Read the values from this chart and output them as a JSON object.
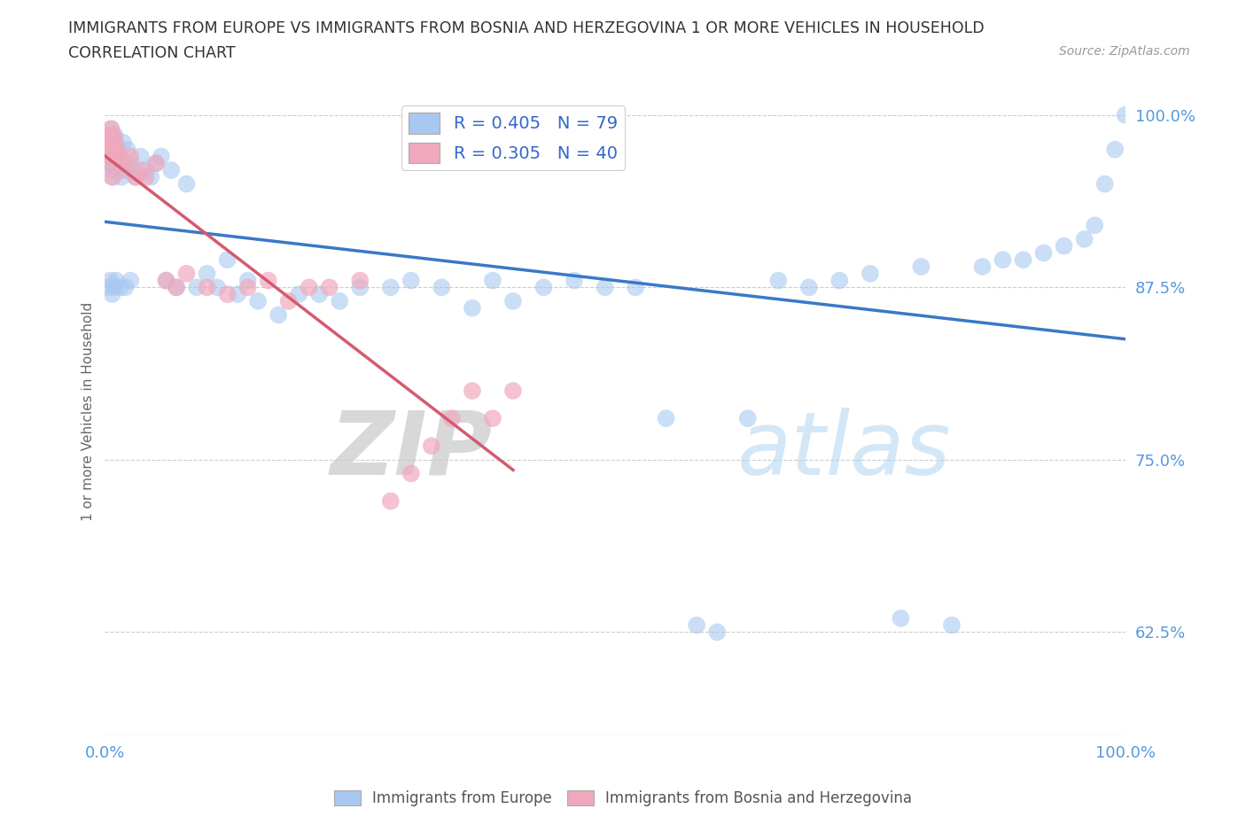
{
  "title_line1": "IMMIGRANTS FROM EUROPE VS IMMIGRANTS FROM BOSNIA AND HERZEGOVINA 1 OR MORE VEHICLES IN HOUSEHOLD",
  "title_line2": "CORRELATION CHART",
  "source_text": "Source: ZipAtlas.com",
  "ylabel": "1 or more Vehicles in Household",
  "xmin": 0.0,
  "xmax": 1.0,
  "ymin": 0.55,
  "ymax": 1.02,
  "yticks": [
    0.625,
    0.75,
    0.875,
    1.0
  ],
  "ytick_labels": [
    "62.5%",
    "75.0%",
    "87.5%",
    "100.0%"
  ],
  "xtick_labels": [
    "0.0%",
    "100.0%"
  ],
  "legend_R1": "R = 0.405",
  "legend_N1": "N = 79",
  "legend_R2": "R = 0.305",
  "legend_N2": "N = 40",
  "watermark_ZIP": "ZIP",
  "watermark_atlas": "atlas",
  "blue_color": "#a8c8f0",
  "pink_color": "#f0a8bc",
  "line_blue": "#3a78c9",
  "line_pink": "#d45a70",
  "blue_scatter_x": [
    0.001,
    0.002,
    0.003,
    0.004,
    0.005,
    0.006,
    0.007,
    0.008,
    0.009,
    0.01,
    0.012,
    0.014,
    0.016,
    0.018,
    0.02,
    0.022,
    0.025,
    0.028,
    0.03,
    0.035,
    0.04,
    0.045,
    0.05,
    0.055,
    0.06,
    0.065,
    0.07,
    0.08,
    0.09,
    0.1,
    0.11,
    0.12,
    0.13,
    0.14,
    0.15,
    0.17,
    0.19,
    0.21,
    0.23,
    0.25,
    0.28,
    0.3,
    0.33,
    0.36,
    0.38,
    0.4,
    0.43,
    0.46,
    0.49,
    0.52,
    0.55,
    0.58,
    0.6,
    0.63,
    0.66,
    0.69,
    0.72,
    0.75,
    0.78,
    0.8,
    0.83,
    0.86,
    0.88,
    0.9,
    0.92,
    0.94,
    0.96,
    0.97,
    0.98,
    0.99,
    1.0,
    0.003,
    0.005,
    0.007,
    0.009,
    0.011,
    0.015,
    0.02,
    0.025
  ],
  "blue_scatter_y": [
    0.98,
    0.975,
    0.97,
    0.965,
    0.985,
    0.99,
    0.96,
    0.955,
    0.975,
    0.985,
    0.97,
    0.965,
    0.955,
    0.98,
    0.96,
    0.975,
    0.965,
    0.96,
    0.955,
    0.97,
    0.96,
    0.955,
    0.965,
    0.97,
    0.88,
    0.96,
    0.875,
    0.95,
    0.875,
    0.885,
    0.875,
    0.895,
    0.87,
    0.88,
    0.865,
    0.855,
    0.87,
    0.87,
    0.865,
    0.875,
    0.875,
    0.88,
    0.875,
    0.86,
    0.88,
    0.865,
    0.875,
    0.88,
    0.875,
    0.875,
    0.78,
    0.63,
    0.625,
    0.78,
    0.88,
    0.875,
    0.88,
    0.885,
    0.635,
    0.89,
    0.63,
    0.89,
    0.895,
    0.895,
    0.9,
    0.905,
    0.91,
    0.92,
    0.95,
    0.975,
    1.0,
    0.875,
    0.88,
    0.87,
    0.875,
    0.88,
    0.875,
    0.875,
    0.88
  ],
  "pink_scatter_x": [
    0.001,
    0.002,
    0.003,
    0.004,
    0.005,
    0.006,
    0.007,
    0.008,
    0.009,
    0.01,
    0.012,
    0.014,
    0.016,
    0.02,
    0.025,
    0.03,
    0.035,
    0.04,
    0.05,
    0.06,
    0.07,
    0.08,
    0.1,
    0.12,
    0.14,
    0.16,
    0.18,
    0.2,
    0.22,
    0.25,
    0.28,
    0.3,
    0.32,
    0.34,
    0.36,
    0.38,
    0.4,
    0.003,
    0.005,
    0.008
  ],
  "pink_scatter_y": [
    0.985,
    0.98,
    0.975,
    0.97,
    0.965,
    0.99,
    0.955,
    0.985,
    0.97,
    0.98,
    0.975,
    0.97,
    0.96,
    0.965,
    0.97,
    0.955,
    0.96,
    0.955,
    0.965,
    0.88,
    0.875,
    0.885,
    0.875,
    0.87,
    0.875,
    0.88,
    0.865,
    0.875,
    0.875,
    0.88,
    0.72,
    0.74,
    0.76,
    0.78,
    0.8,
    0.78,
    0.8,
    0.975,
    0.975,
    0.985
  ]
}
